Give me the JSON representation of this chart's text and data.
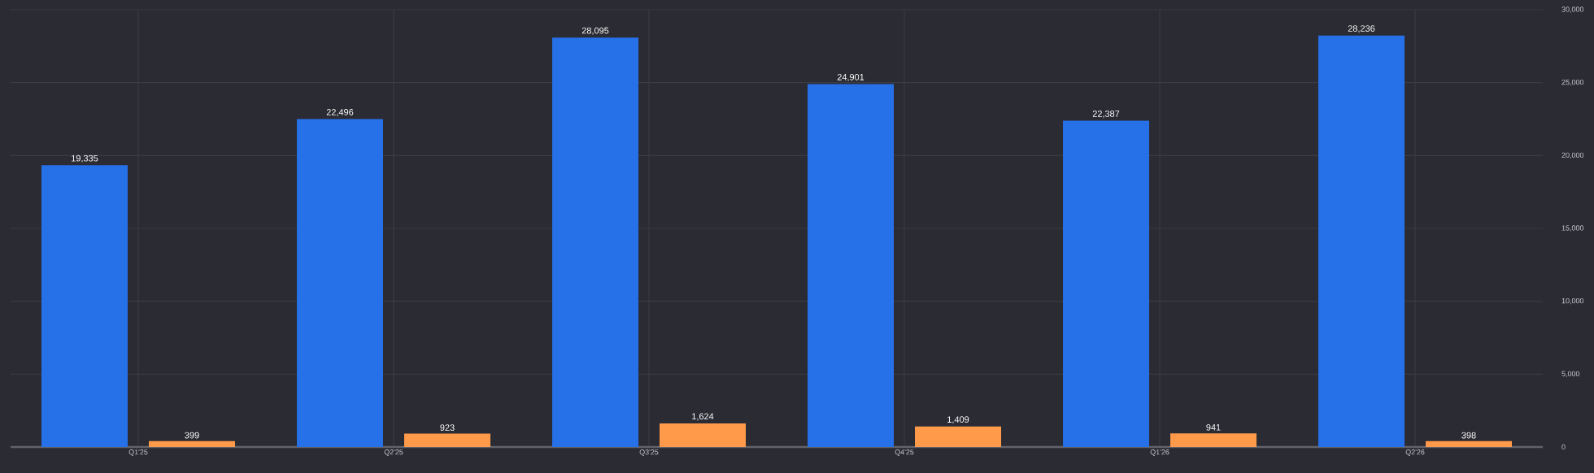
{
  "chart_data": {
    "type": "bar",
    "categories": [
      "Q1'25",
      "Q2'25",
      "Q3'25",
      "Q4'25",
      "Q1'26",
      "Q2'26"
    ],
    "series": [
      {
        "color": "#2670e8",
        "values": [
          19335,
          22496,
          28095,
          24901,
          22387,
          28236
        ],
        "value_labels": [
          "19,335",
          "22,496",
          "28,095",
          "24,901",
          "22,387",
          "28,236"
        ]
      },
      {
        "color": "#ff9a4a",
        "values": [
          399,
          923,
          1624,
          1409,
          941,
          398
        ],
        "value_labels": [
          "399",
          "923",
          "1,624",
          "1,409",
          "941",
          "398"
        ]
      }
    ],
    "ylim": [
      0,
      30000
    ],
    "yticks": [
      {
        "value": 0,
        "label": "0"
      },
      {
        "value": 5000,
        "label": "5,000"
      },
      {
        "value": 10000,
        "label": "10,000"
      },
      {
        "value": 15000,
        "label": "15,000"
      },
      {
        "value": 20000,
        "label": "20,000"
      },
      {
        "value": 25000,
        "label": "25,000"
      },
      {
        "value": 30000,
        "label": "30,000"
      }
    ],
    "grid": true
  }
}
